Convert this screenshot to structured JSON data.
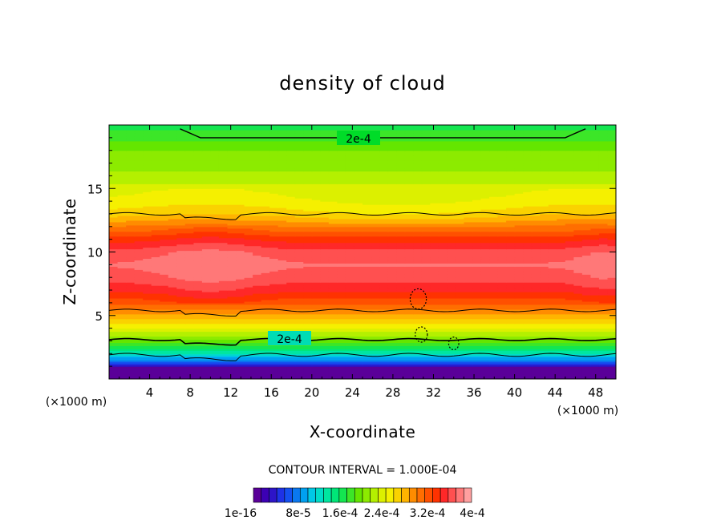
{
  "chart_data": {
    "type": "heatmap",
    "title": "density of cloud",
    "xlabel": "X-coordinate",
    "ylabel": "Z-coordinate",
    "x_unit": "(×1000 m)",
    "y_unit": "(×1000 m)",
    "xlim": [
      0,
      50
    ],
    "ylim": [
      0,
      20
    ],
    "x_ticks": [
      4,
      8,
      12,
      16,
      20,
      24,
      28,
      32,
      36,
      40,
      44,
      48
    ],
    "y_ticks": [
      5,
      10,
      15
    ],
    "contour_interval_text": "CONTOUR INTERVAL = 1.000E-04",
    "contour_labels": [
      "2e-4",
      "2e-4"
    ],
    "colorbar": {
      "labels": [
        "1e-16",
        "8e-5",
        "1.6e-4",
        "2.4e-4",
        "3.2e-4",
        "4e-4"
      ],
      "range": [
        0,
        0.00044
      ],
      "colors": [
        "#5a0099",
        "#3c00b4",
        "#2d14c8",
        "#1e32e6",
        "#1450f0",
        "#0a78f0",
        "#00a0f0",
        "#00c8e6",
        "#00dcc8",
        "#00e6a0",
        "#00e678",
        "#14e650",
        "#3ce628",
        "#64e600",
        "#8ceb00",
        "#b4f000",
        "#dcf000",
        "#f5f000",
        "#fad200",
        "#ffb400",
        "#ff8c00",
        "#ff6e00",
        "#ff5000",
        "#ff3200",
        "#ff2828",
        "#ff5050",
        "#ff7878",
        "#ffa0a0"
      ]
    },
    "profile": {
      "z_km": [
        0.5,
        1.0,
        1.5,
        2.0,
        2.5,
        3.0,
        4.0,
        5.0,
        6.0,
        7.0,
        8.0,
        9.0,
        10.0,
        11.0,
        12.0,
        13.0,
        14.0,
        15.0,
        16.0,
        17.0,
        18.0,
        19.0,
        20.0
      ],
      "density": [
        1.5e-05,
        4e-05,
        9e-05,
        0.00014,
        0.00018,
        0.00021,
        0.00027,
        0.00031,
        0.00035,
        0.00038,
        0.0004,
        0.00041,
        0.0004,
        0.00037,
        0.00033,
        0.00029,
        0.00027,
        0.00026,
        0.00024,
        0.00023,
        0.00022,
        0.0002,
        0.00018
      ]
    }
  }
}
